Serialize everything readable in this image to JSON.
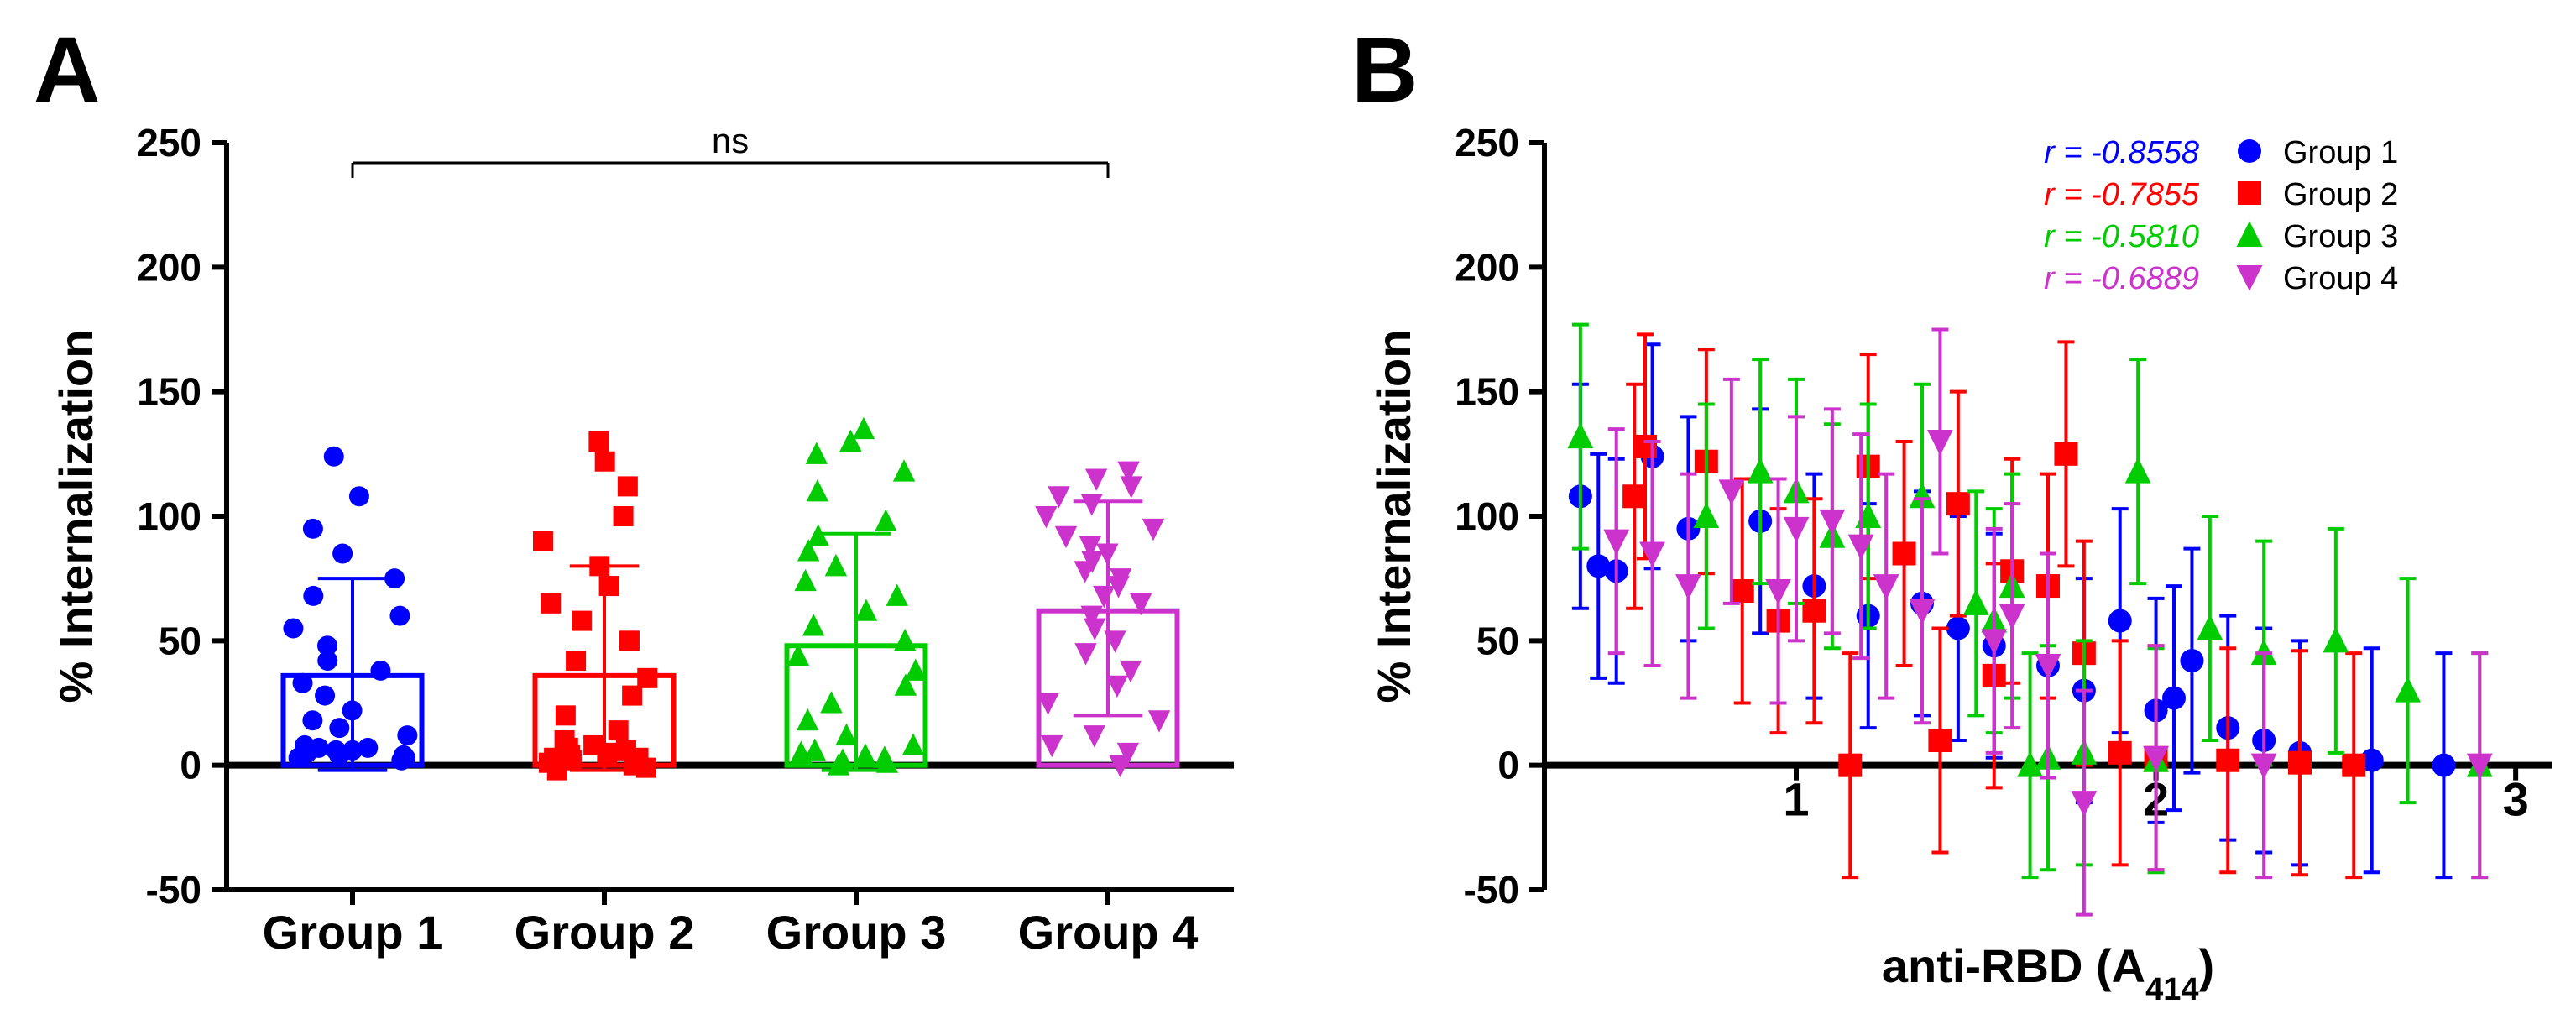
{
  "panelA": {
    "label": "A",
    "type": "bar-scatter",
    "ylabel": "% Internalization",
    "ylim": [
      -50,
      250
    ],
    "ytick_step": 50,
    "categories": [
      "Group 1",
      "Group 2",
      "Group 3",
      "Group 4"
    ],
    "ns_text": "ns",
    "bar_heights": [
      36,
      36,
      48,
      62
    ],
    "err_bounds": [
      [
        -2,
        75
      ],
      [
        -2,
        80
      ],
      [
        -2,
        93
      ],
      [
        20,
        106
      ]
    ],
    "bar_colors": [
      "#0000ff",
      "#ff0000",
      "#00cc00",
      "#cc33cc"
    ],
    "bar_fill": "none",
    "bar_stroke_width": 6,
    "err_stroke_width": 4,
    "axis_color": "#000000",
    "background_color": "#ffffff",
    "marker_shapes": [
      "circle",
      "square",
      "triangle-up",
      "triangle-down"
    ],
    "marker_size": 12,
    "n_points_per_group": 28,
    "jitter_width": 0.5,
    "points": {
      "0": [
        2,
        3,
        3,
        4,
        4,
        5,
        6,
        6,
        7,
        7,
        8,
        12,
        15,
        18,
        22,
        28,
        33,
        38,
        42,
        48,
        55,
        60,
        68,
        75,
        85,
        95,
        108,
        124
      ],
      "1": [
        -2,
        -1,
        0,
        1,
        2,
        3,
        3,
        4,
        5,
        6,
        7,
        8,
        10,
        14,
        20,
        28,
        35,
        42,
        50,
        58,
        65,
        72,
        80,
        90,
        100,
        112,
        122,
        130
      ],
      "2": [
        0,
        1,
        2,
        3,
        4,
        5,
        6,
        8,
        12,
        18,
        25,
        32,
        38,
        44,
        50,
        56,
        62,
        68,
        74,
        80,
        86,
        92,
        98,
        110,
        118,
        125,
        130,
        135
      ],
      "3": [
        0,
        5,
        8,
        12,
        18,
        25,
        32,
        38,
        45,
        50,
        55,
        60,
        65,
        68,
        72,
        75,
        78,
        82,
        85,
        88,
        92,
        95,
        100,
        105,
        108,
        112,
        115,
        118
      ]
    },
    "title_fontsize": 56,
    "label_fontsize": 56,
    "tick_fontsize": 46
  },
  "panelB": {
    "label": "B",
    "type": "scatter-errorbar",
    "xlabel_html": "anti-RBD (A₄₁₄)",
    "ylabel": "% Internalization",
    "xlim": [
      0.3,
      3.1
    ],
    "xtick_vals": [
      1,
      2,
      3
    ],
    "ylim": [
      -50,
      250
    ],
    "ytick_step": 50,
    "axis_color": "#000000",
    "background_color": "#ffffff",
    "marker_size": 14,
    "err_stroke_width": 4,
    "series": [
      {
        "label": "Group 1",
        "color": "#0000ff",
        "shape": "circle",
        "r": "r = -0.8558"
      },
      {
        "label": "Group 2",
        "color": "#ff0000",
        "shape": "square",
        "r": "r = -0.7855"
      },
      {
        "label": "Group 3",
        "color": "#00cc00",
        "shape": "triangle-up",
        "r": "r = -0.5810"
      },
      {
        "label": "Group 4",
        "color": "#cc33cc",
        "shape": "triangle-down",
        "r": "r = -0.6889"
      }
    ],
    "points": {
      "0": [
        {
          "x": 0.4,
          "y": 108
        },
        {
          "x": 0.45,
          "y": 80
        },
        {
          "x": 0.5,
          "y": 78
        },
        {
          "x": 0.6,
          "y": 124
        },
        {
          "x": 0.7,
          "y": 95
        },
        {
          "x": 0.9,
          "y": 98
        },
        {
          "x": 1.05,
          "y": 72
        },
        {
          "x": 1.2,
          "y": 60
        },
        {
          "x": 1.35,
          "y": 65
        },
        {
          "x": 1.45,
          "y": 55
        },
        {
          "x": 1.55,
          "y": 48
        },
        {
          "x": 1.7,
          "y": 40
        },
        {
          "x": 1.8,
          "y": 30
        },
        {
          "x": 1.9,
          "y": 58
        },
        {
          "x": 2.0,
          "y": 22
        },
        {
          "x": 2.05,
          "y": 27
        },
        {
          "x": 2.1,
          "y": 42
        },
        {
          "x": 2.2,
          "y": 15
        },
        {
          "x": 2.3,
          "y": 10
        },
        {
          "x": 2.4,
          "y": 5
        },
        {
          "x": 2.6,
          "y": 2
        },
        {
          "x": 2.8,
          "y": 0
        }
      ],
      "1": [
        {
          "x": 0.55,
          "y": 108
        },
        {
          "x": 0.58,
          "y": 128
        },
        {
          "x": 0.75,
          "y": 122
        },
        {
          "x": 0.85,
          "y": 70
        },
        {
          "x": 0.95,
          "y": 58
        },
        {
          "x": 1.05,
          "y": 62
        },
        {
          "x": 1.15,
          "y": 0
        },
        {
          "x": 1.2,
          "y": 120
        },
        {
          "x": 1.3,
          "y": 85
        },
        {
          "x": 1.4,
          "y": 10
        },
        {
          "x": 1.45,
          "y": 105
        },
        {
          "x": 1.55,
          "y": 36
        },
        {
          "x": 1.6,
          "y": 78
        },
        {
          "x": 1.7,
          "y": 72
        },
        {
          "x": 1.75,
          "y": 125
        },
        {
          "x": 1.8,
          "y": 45
        },
        {
          "x": 1.9,
          "y": 5
        },
        {
          "x": 2.0,
          "y": 3
        },
        {
          "x": 2.2,
          "y": 2
        },
        {
          "x": 2.4,
          "y": 1
        },
        {
          "x": 2.55,
          "y": 0
        }
      ],
      "2": [
        {
          "x": 0.4,
          "y": 132
        },
        {
          "x": 0.75,
          "y": 100
        },
        {
          "x": 0.9,
          "y": 118
        },
        {
          "x": 1.0,
          "y": 110
        },
        {
          "x": 1.1,
          "y": 92
        },
        {
          "x": 1.2,
          "y": 100
        },
        {
          "x": 1.35,
          "y": 108
        },
        {
          "x": 1.5,
          "y": 65
        },
        {
          "x": 1.55,
          "y": 58
        },
        {
          "x": 1.6,
          "y": 72
        },
        {
          "x": 1.65,
          "y": 0
        },
        {
          "x": 1.7,
          "y": 3
        },
        {
          "x": 1.8,
          "y": 5
        },
        {
          "x": 1.95,
          "y": 118
        },
        {
          "x": 2.0,
          "y": 2
        },
        {
          "x": 2.15,
          "y": 55
        },
        {
          "x": 2.3,
          "y": 45
        },
        {
          "x": 2.5,
          "y": 50
        },
        {
          "x": 2.7,
          "y": 30
        },
        {
          "x": 2.9,
          "y": 0
        }
      ],
      "3": [
        {
          "x": 0.5,
          "y": 90
        },
        {
          "x": 0.6,
          "y": 85
        },
        {
          "x": 0.7,
          "y": 72
        },
        {
          "x": 0.82,
          "y": 110
        },
        {
          "x": 0.95,
          "y": 70
        },
        {
          "x": 1.0,
          "y": 95
        },
        {
          "x": 1.1,
          "y": 98
        },
        {
          "x": 1.18,
          "y": 88
        },
        {
          "x": 1.25,
          "y": 72
        },
        {
          "x": 1.35,
          "y": 62
        },
        {
          "x": 1.4,
          "y": 130
        },
        {
          "x": 1.55,
          "y": 50
        },
        {
          "x": 1.6,
          "y": 60
        },
        {
          "x": 1.7,
          "y": 40
        },
        {
          "x": 1.8,
          "y": -15
        },
        {
          "x": 2.0,
          "y": 3
        },
        {
          "x": 2.3,
          "y": 0
        },
        {
          "x": 2.9,
          "y": 0
        }
      ]
    },
    "default_err": 45
  }
}
